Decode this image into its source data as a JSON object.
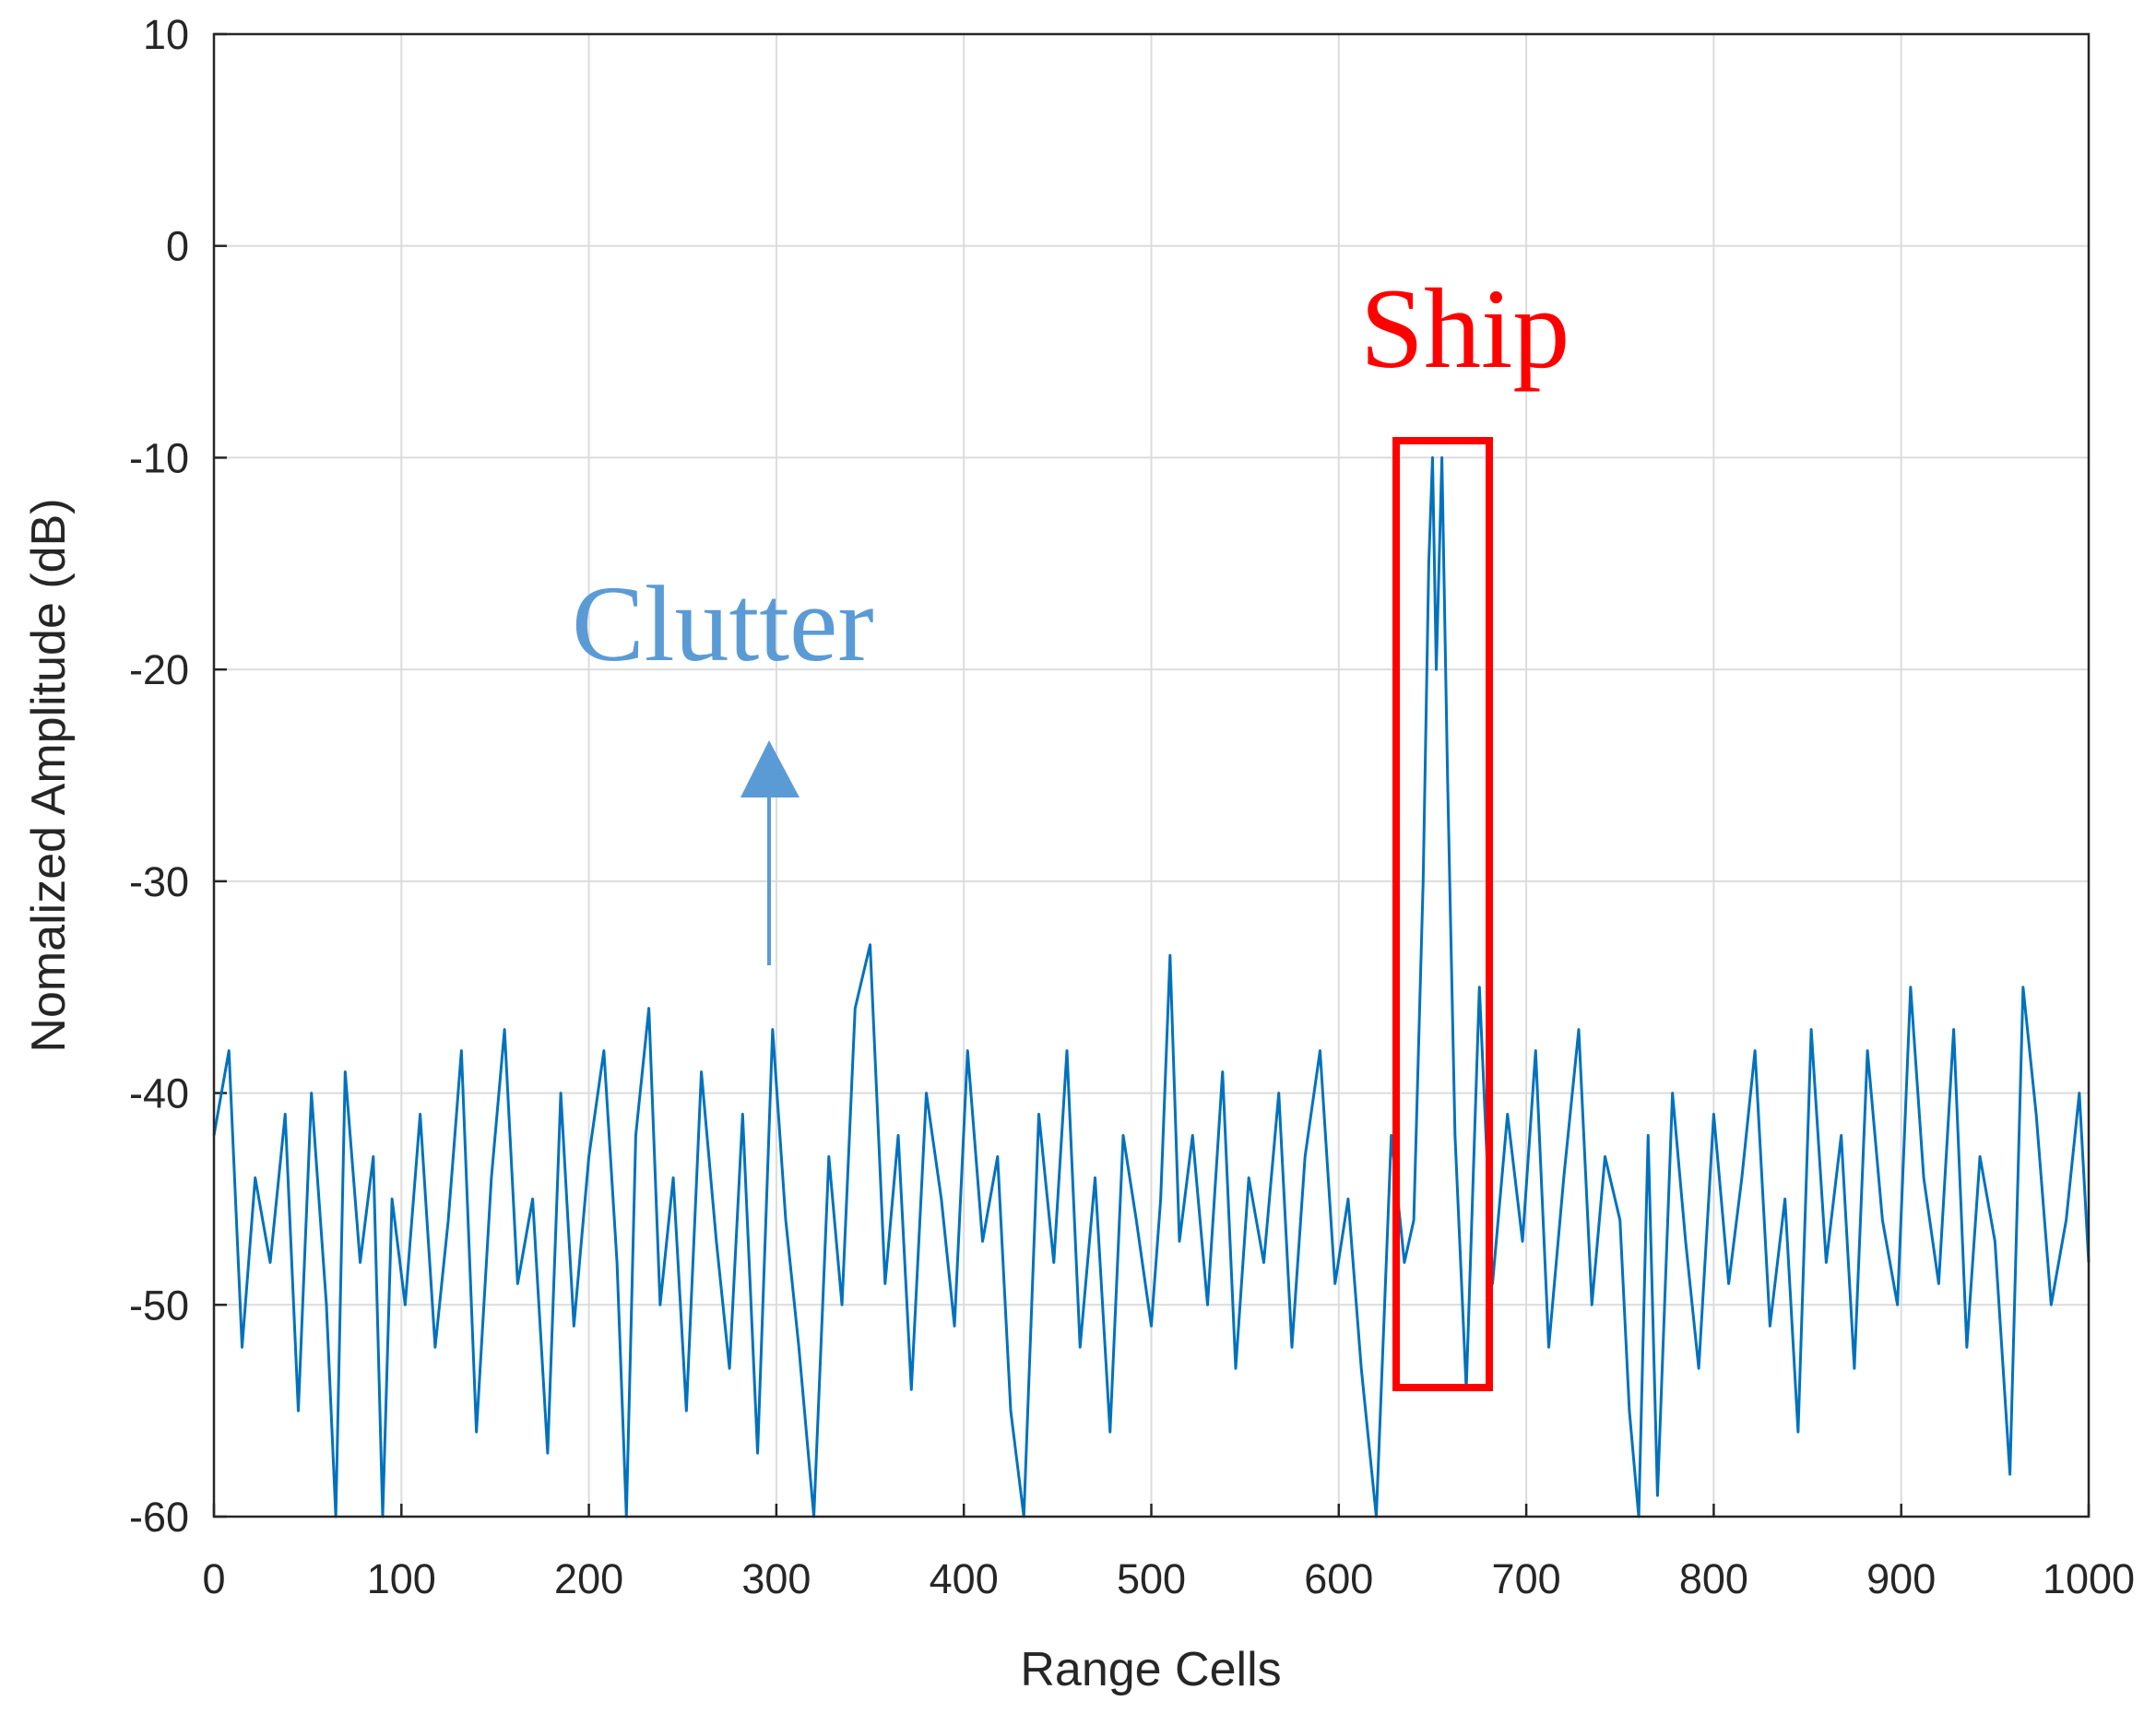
{
  "chart_data": {
    "type": "line",
    "xlabel": "Range Cells",
    "ylabel": "Nomalized Amplitude (dB)",
    "annotations": [
      "Ship",
      "Clutter"
    ],
    "annotation_colors": [
      "#ff0000",
      "#5b9bd5"
    ],
    "grid": true,
    "xlim": [
      0,
      1000
    ],
    "xticks": [
      0,
      100,
      200,
      300,
      400,
      500,
      600,
      700,
      800,
      900,
      1000
    ],
    "ylim": [
      -60,
      10
    ],
    "yticks": [
      -60,
      -50,
      -40,
      -30,
      -20,
      -10,
      0,
      10
    ],
    "x": [
      0,
      8,
      15,
      22,
      30,
      38,
      45,
      52,
      60,
      65,
      70,
      78,
      85,
      90,
      95,
      102,
      110,
      118,
      125,
      132,
      140,
      148,
      155,
      162,
      170,
      178,
      185,
      192,
      200,
      208,
      215,
      220,
      225,
      232,
      238,
      245,
      252,
      260,
      268,
      275,
      282,
      290,
      298,
      305,
      312,
      320,
      328,
      335,
      342,
      350,
      358,
      365,
      372,
      380,
      388,
      395,
      402,
      410,
      418,
      425,
      432,
      440,
      448,
      455,
      462,
      470,
      478,
      485,
      492,
      500,
      505,
      510,
      515,
      522,
      530,
      538,
      545,
      552,
      560,
      568,
      575,
      582,
      590,
      598,
      605,
      612,
      620,
      628,
      635,
      640,
      645,
      648,
      650,
      652,
      655,
      658,
      662,
      668,
      675,
      682,
      690,
      698,
      705,
      712,
      720,
      728,
      735,
      742,
      750,
      755,
      760,
      765,
      770,
      778,
      785,
      792,
      800,
      808,
      815,
      822,
      830,
      838,
      845,
      852,
      860,
      868,
      875,
      882,
      890,
      898,
      905,
      912,
      920,
      928,
      935,
      942,
      950,
      958,
      965,
      972,
      980,
      988,
      995,
      1000
    ],
    "series": [
      {
        "color": "#0072bd",
        "values": [
          -42,
          -38,
          -52,
          -44,
          -48,
          -41,
          -55,
          -40,
          -50,
          -60,
          -39,
          -48,
          -43,
          -60,
          -45,
          -50,
          -41,
          -52,
          -46,
          -38,
          -56,
          -44,
          -37,
          -49,
          -45,
          -57,
          -40,
          -51,
          -43,
          -38,
          -48,
          -60,
          -42,
          -36,
          -50,
          -44,
          -55,
          -39,
          -47,
          -53,
          -41,
          -57,
          -37,
          -46,
          -52,
          -60,
          -43,
          -50,
          -36,
          -33,
          -49,
          -42,
          -54,
          -40,
          -45,
          -51,
          -38,
          -47,
          -43,
          -55,
          -60,
          -41,
          -48,
          -38,
          -52,
          -44,
          -56,
          -42,
          -46,
          -51,
          -45,
          -33.5,
          -47,
          -42,
          -50,
          -39,
          -53,
          -44,
          -48,
          -40,
          -52,
          -43,
          -38,
          -49,
          -45,
          -53,
          -60,
          -42,
          -48,
          -46,
          -30,
          -15,
          -10,
          -20,
          -10,
          -25,
          -42,
          -54,
          -35,
          -49,
          -41,
          -47,
          -38,
          -52,
          -44,
          -37,
          -50,
          -43,
          -46,
          -55,
          -60,
          -42,
          -59,
          -40,
          -47,
          -53,
          -41,
          -49,
          -44,
          -38,
          -51,
          -45,
          -56,
          -37,
          -48,
          -42,
          -53,
          -38,
          -46,
          -50,
          -35,
          -44,
          -49,
          -37,
          -52,
          -43,
          -47,
          -58,
          -35,
          -41,
          -50,
          -46,
          -40,
          -48
        ]
      }
    ]
  }
}
